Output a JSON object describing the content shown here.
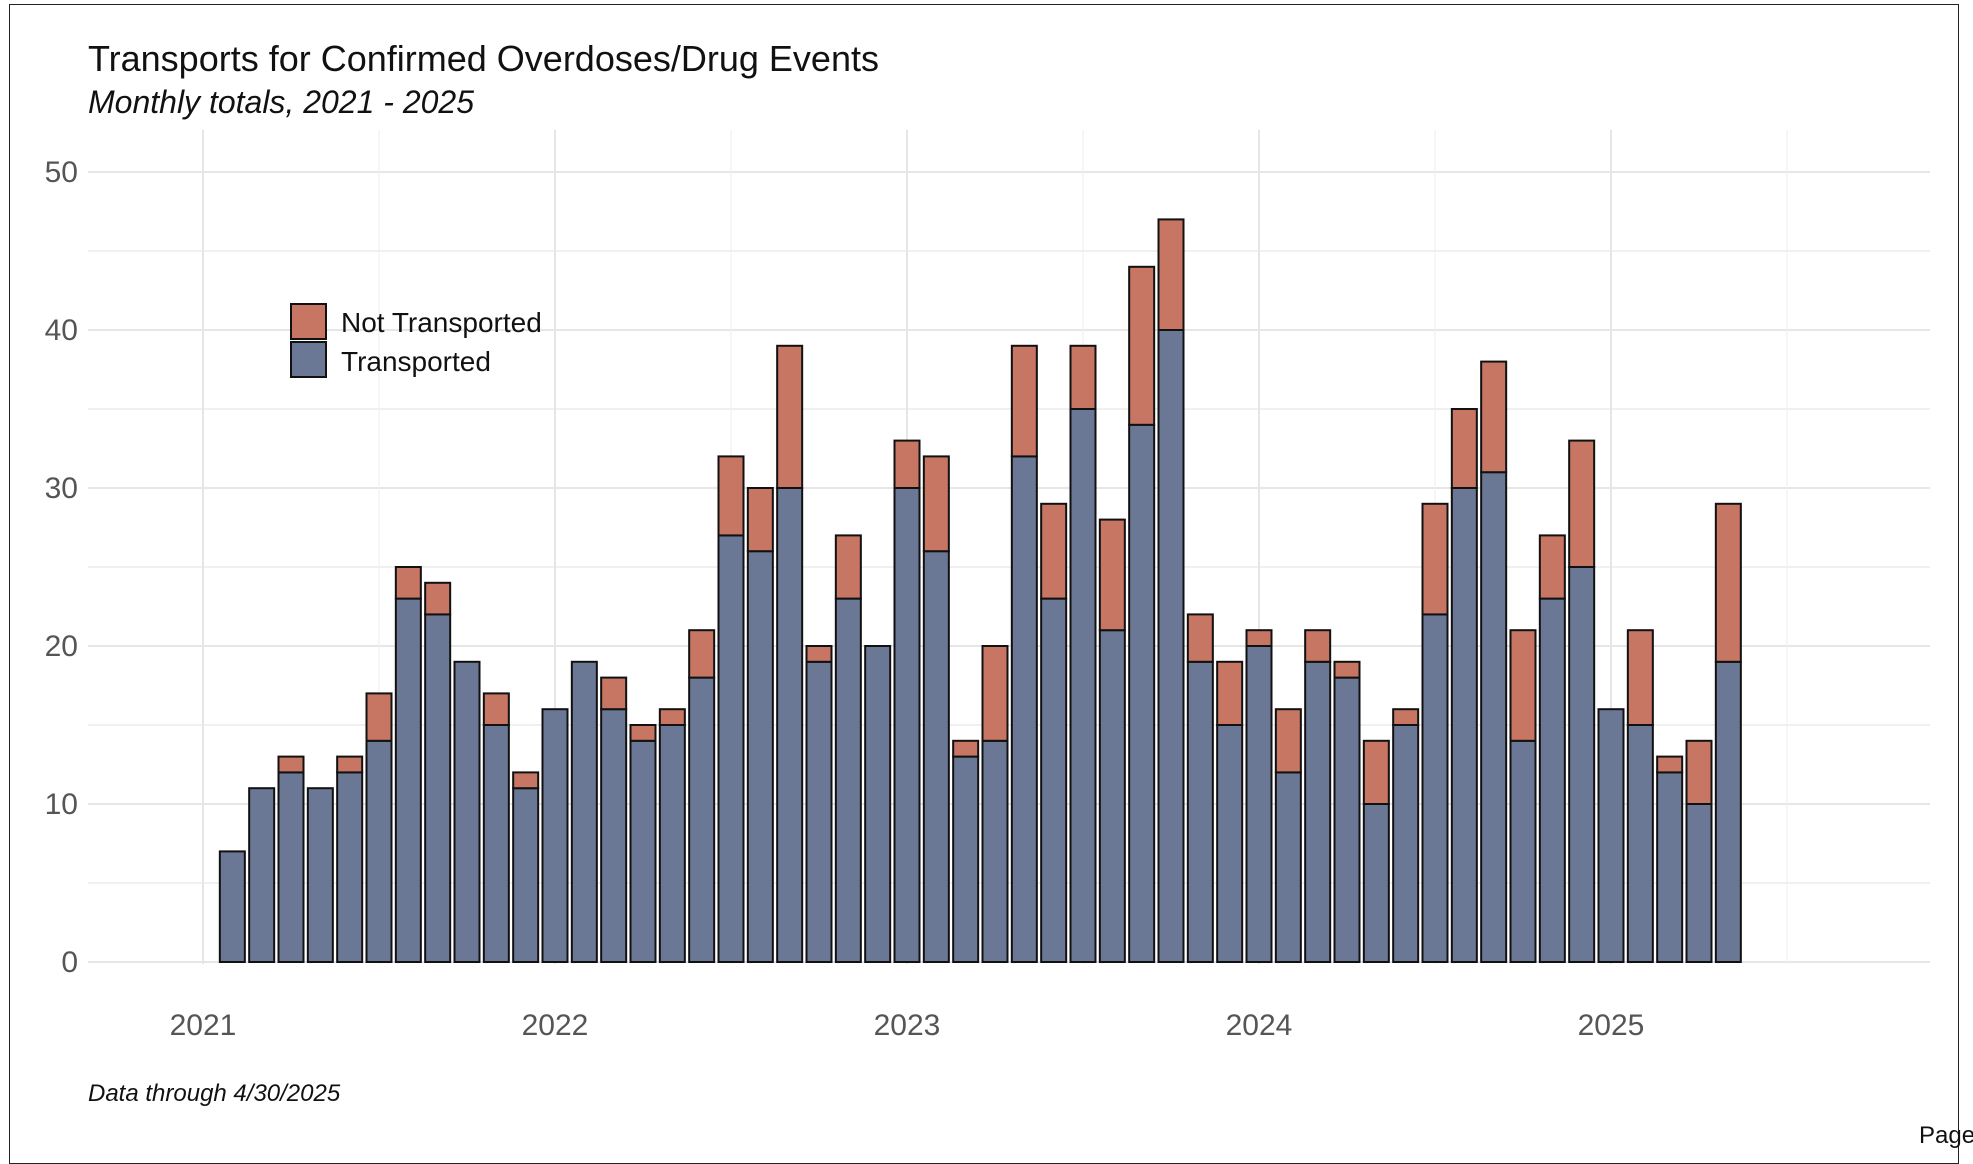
{
  "chart_data": {
    "type": "bar",
    "stacked": true,
    "title": "Transports for Confirmed Overdoses/Drug Events",
    "subtitle": "Monthly totals, 2021 - 2025",
    "xlabel": "",
    "ylabel": "",
    "ylim": [
      0,
      50
    ],
    "yticks": [
      0,
      10,
      20,
      30,
      40,
      50
    ],
    "xticks": [
      "2021",
      "2022",
      "2023",
      "2024",
      "2025"
    ],
    "grid": true,
    "legend_position": "top-left",
    "categories": [
      "2021-01",
      "2021-02",
      "2021-03",
      "2021-04",
      "2021-05",
      "2021-06",
      "2021-07",
      "2021-08",
      "2021-09",
      "2021-10",
      "2021-11",
      "2021-12",
      "2022-01",
      "2022-02",
      "2022-03",
      "2022-04",
      "2022-05",
      "2022-06",
      "2022-07",
      "2022-08",
      "2022-09",
      "2022-10",
      "2022-11",
      "2022-12",
      "2023-01",
      "2023-02",
      "2023-03",
      "2023-04",
      "2023-05",
      "2023-06",
      "2023-07",
      "2023-08",
      "2023-09",
      "2023-10",
      "2023-11",
      "2023-12",
      "2024-01",
      "2024-02",
      "2024-03",
      "2024-04",
      "2024-05",
      "2024-06",
      "2024-07",
      "2024-08",
      "2024-09",
      "2024-10",
      "2024-11",
      "2024-12",
      "2025-01",
      "2025-02",
      "2025-03",
      "2025-04"
    ],
    "series": [
      {
        "name": "Transported",
        "color": "#6b7895",
        "values": [
          7,
          11,
          12,
          11,
          12,
          14,
          23,
          22,
          19,
          15,
          11,
          16,
          19,
          16,
          14,
          15,
          18,
          27,
          26,
          30,
          19,
          23,
          20,
          30,
          26,
          13,
          14,
          32,
          23,
          35,
          21,
          34,
          40,
          19,
          15,
          20,
          12,
          19,
          18,
          10,
          15,
          22,
          30,
          31,
          14,
          23,
          25,
          16,
          15,
          12,
          10,
          19
        ]
      },
      {
        "name": "Not Transported",
        "color": "#c87664",
        "values": [
          0,
          0,
          1,
          0,
          1,
          3,
          2,
          2,
          0,
          2,
          1,
          0,
          0,
          2,
          1,
          1,
          3,
          5,
          4,
          9,
          1,
          4,
          0,
          3,
          6,
          1,
          6,
          7,
          6,
          4,
          7,
          10,
          7,
          3,
          4,
          1,
          4,
          2,
          1,
          4,
          1,
          7,
          5,
          7,
          7,
          4,
          8,
          0,
          6,
          1,
          4,
          10
        ]
      }
    ],
    "footnote": "Data through 4/30/2025"
  },
  "page": {
    "corner_text": "Page"
  }
}
